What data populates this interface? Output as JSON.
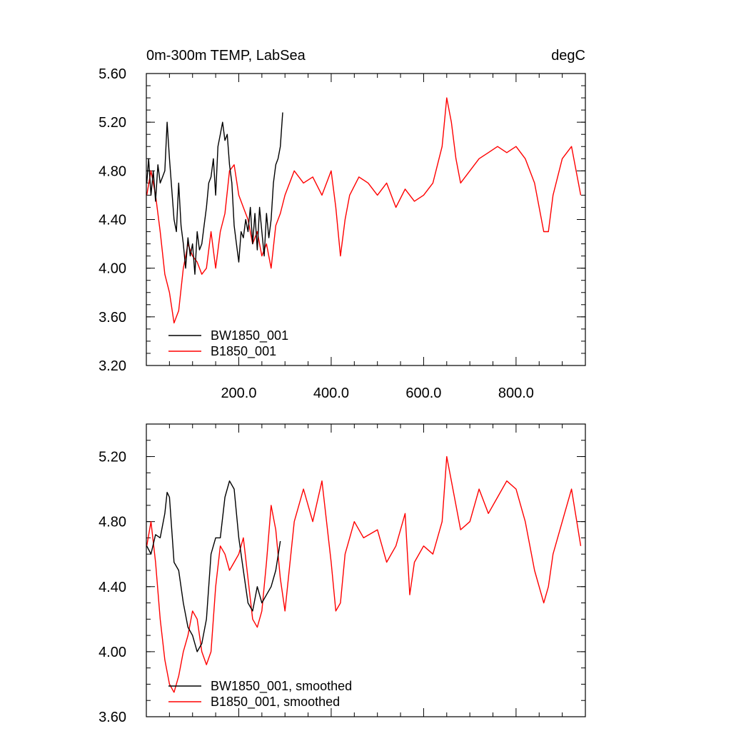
{
  "chart_data": [
    {
      "type": "line",
      "title": "0m-300m TEMP, LabSea",
      "units": "degC",
      "xlabel": "",
      "ylabel": "",
      "xlim": [
        0,
        950
      ],
      "ylim": [
        3.2,
        5.6
      ],
      "yticks": [
        "3.20",
        "3.60",
        "4.00",
        "4.40",
        "4.80",
        "5.20",
        "5.60"
      ],
      "xticks": [
        "200.0",
        "400.0",
        "600.0",
        "800.0"
      ],
      "grid": false,
      "legend_position": "bottom-left",
      "series": [
        {
          "name": "BW1850_001",
          "color": "#000000",
          "x": [
            1,
            5,
            10,
            15,
            20,
            25,
            30,
            35,
            40,
            45,
            50,
            55,
            60,
            65,
            70,
            75,
            80,
            85,
            90,
            95,
            100,
            105,
            110,
            115,
            120,
            125,
            130,
            135,
            140,
            145,
            150,
            155,
            160,
            165,
            170,
            175,
            180,
            185,
            190,
            195,
            200,
            205,
            210,
            215,
            220,
            225,
            230,
            235,
            240,
            245,
            250,
            255,
            260,
            265,
            270,
            275,
            280,
            285,
            290,
            295
          ],
          "values": [
            4.7,
            4.9,
            4.6,
            4.8,
            4.55,
            4.85,
            4.7,
            4.75,
            4.8,
            5.2,
            4.9,
            4.65,
            4.4,
            4.3,
            4.7,
            4.35,
            4.2,
            4.0,
            4.25,
            4.1,
            4.2,
            3.95,
            4.3,
            4.15,
            4.2,
            4.35,
            4.5,
            4.7,
            4.75,
            4.9,
            4.6,
            5.0,
            5.1,
            5.2,
            5.05,
            5.1,
            4.85,
            4.7,
            4.35,
            4.2,
            4.05,
            4.3,
            4.25,
            4.4,
            4.3,
            4.5,
            4.2,
            4.45,
            4.15,
            4.5,
            4.3,
            4.1,
            4.45,
            4.25,
            4.4,
            4.7,
            4.85,
            4.9,
            5.0,
            5.28
          ]
        },
        {
          "name": "B1850_001",
          "color": "#ff0000",
          "x": [
            1,
            10,
            20,
            30,
            40,
            50,
            60,
            70,
            80,
            90,
            100,
            110,
            120,
            130,
            140,
            150,
            160,
            170,
            180,
            190,
            200,
            210,
            220,
            230,
            240,
            250,
            260,
            270,
            280,
            290,
            300,
            320,
            340,
            360,
            380,
            400,
            410,
            420,
            430,
            440,
            460,
            480,
            500,
            520,
            540,
            560,
            580,
            600,
            620,
            640,
            650,
            660,
            670,
            680,
            700,
            720,
            740,
            760,
            780,
            800,
            820,
            840,
            860,
            870,
            880,
            900,
            920,
            940
          ],
          "values": [
            4.6,
            4.8,
            4.6,
            4.3,
            3.95,
            3.8,
            3.55,
            3.65,
            4.0,
            4.2,
            4.1,
            4.05,
            3.95,
            4.0,
            4.3,
            4.0,
            4.3,
            4.45,
            4.8,
            4.85,
            4.6,
            4.5,
            4.4,
            4.2,
            4.3,
            4.1,
            4.2,
            4.0,
            4.35,
            4.45,
            4.6,
            4.8,
            4.7,
            4.75,
            4.6,
            4.8,
            4.5,
            4.1,
            4.4,
            4.6,
            4.75,
            4.7,
            4.6,
            4.7,
            4.5,
            4.65,
            4.55,
            4.6,
            4.7,
            5.0,
            5.4,
            5.2,
            4.9,
            4.7,
            4.8,
            4.9,
            4.95,
            5.0,
            4.95,
            5.0,
            4.9,
            4.7,
            4.3,
            4.3,
            4.6,
            4.9,
            5.0,
            4.6
          ]
        }
      ]
    },
    {
      "type": "line",
      "title": "",
      "xlabel": "",
      "ylabel": "",
      "xlim": [
        0,
        950
      ],
      "ylim": [
        3.6,
        5.4
      ],
      "yticks": [
        "3.60",
        "4.00",
        "4.40",
        "4.80",
        "5.20"
      ],
      "xticks": [],
      "grid": false,
      "legend_position": "bottom-left",
      "series": [
        {
          "name": "BW1850_001, smoothed",
          "color": "#000000",
          "x": [
            1,
            10,
            20,
            30,
            40,
            45,
            50,
            60,
            70,
            80,
            90,
            100,
            110,
            120,
            130,
            140,
            150,
            160,
            170,
            180,
            190,
            200,
            210,
            220,
            230,
            240,
            250,
            260,
            270,
            280,
            290
          ],
          "values": [
            4.65,
            4.6,
            4.72,
            4.7,
            4.85,
            4.98,
            4.95,
            4.55,
            4.5,
            4.3,
            4.15,
            4.1,
            4.0,
            4.05,
            4.2,
            4.6,
            4.7,
            4.7,
            4.95,
            5.05,
            5.0,
            4.7,
            4.5,
            4.3,
            4.25,
            4.4,
            4.3,
            4.35,
            4.4,
            4.5,
            4.68
          ]
        },
        {
          "name": "B1850_001, smoothed",
          "color": "#ff0000",
          "x": [
            1,
            10,
            20,
            30,
            40,
            50,
            60,
            70,
            80,
            90,
            100,
            110,
            120,
            130,
            140,
            150,
            160,
            170,
            180,
            190,
            200,
            210,
            220,
            230,
            240,
            250,
            260,
            270,
            280,
            290,
            300,
            320,
            340,
            350,
            360,
            380,
            400,
            410,
            420,
            430,
            450,
            470,
            500,
            520,
            540,
            560,
            570,
            580,
            600,
            620,
            640,
            650,
            660,
            680,
            700,
            720,
            740,
            760,
            780,
            800,
            820,
            840,
            860,
            870,
            880,
            900,
            920,
            940
          ],
          "values": [
            4.65,
            4.8,
            4.55,
            4.2,
            3.95,
            3.8,
            3.75,
            3.85,
            4.0,
            4.1,
            4.25,
            4.2,
            4.0,
            3.92,
            4.0,
            4.4,
            4.65,
            4.6,
            4.5,
            4.55,
            4.6,
            4.7,
            4.45,
            4.2,
            4.15,
            4.25,
            4.55,
            4.9,
            4.75,
            4.45,
            4.25,
            4.8,
            5.0,
            4.9,
            4.8,
            5.05,
            4.55,
            4.25,
            4.3,
            4.6,
            4.8,
            4.7,
            4.75,
            4.55,
            4.65,
            4.85,
            4.35,
            4.55,
            4.65,
            4.6,
            4.8,
            5.2,
            5.05,
            4.75,
            4.8,
            5.0,
            4.85,
            4.95,
            5.05,
            5.0,
            4.8,
            4.5,
            4.3,
            4.4,
            4.6,
            4.8,
            5.0,
            4.65
          ]
        }
      ]
    }
  ]
}
